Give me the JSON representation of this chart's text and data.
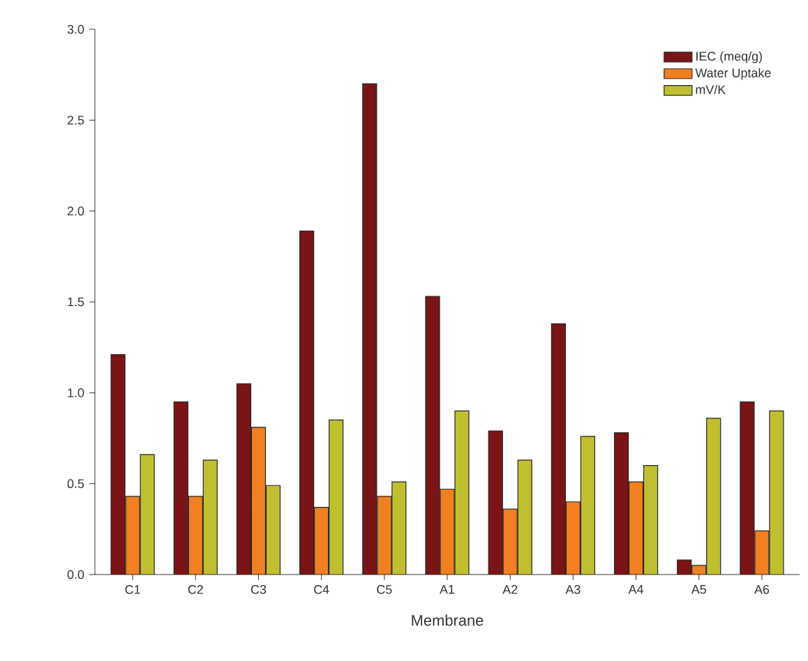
{
  "chart_data": {
    "type": "bar",
    "xlabel": "Membrane",
    "categories": [
      "C1",
      "C2",
      "C3",
      "C4",
      "C5",
      "A1",
      "A2",
      "A3",
      "A4",
      "A5",
      "A6"
    ],
    "series": [
      {
        "name": "IEC (meq/g)",
        "color": "#7b1416",
        "values": [
          1.21,
          0.95,
          1.05,
          1.89,
          2.7,
          1.53,
          0.79,
          1.38,
          0.78,
          0.08,
          0.95
        ]
      },
      {
        "name": "Water Uptake",
        "color": "#f28020",
        "values": [
          0.43,
          0.43,
          0.81,
          0.37,
          0.43,
          0.47,
          0.36,
          0.4,
          0.51,
          0.05,
          0.24
        ]
      },
      {
        "name": "mV/K",
        "color": "#c0bf30",
        "values": [
          0.66,
          0.63,
          0.49,
          0.85,
          0.51,
          0.9,
          0.63,
          0.76,
          0.6,
          0.86,
          0.9
        ]
      }
    ],
    "ylim": [
      0,
      3.0
    ],
    "yticks": [
      {
        "value": 0,
        "label": "0.0"
      },
      {
        "value": 0.5,
        "label": "0.5"
      },
      {
        "value": 1.0,
        "label": "1.0"
      },
      {
        "value": 1.5,
        "label": "1.5"
      },
      {
        "value": 2.0,
        "label": "2.0"
      },
      {
        "value": 2.5,
        "label": "2.5"
      },
      {
        "value": 3.0,
        "label": "3.0"
      }
    ],
    "legend": "top right"
  }
}
